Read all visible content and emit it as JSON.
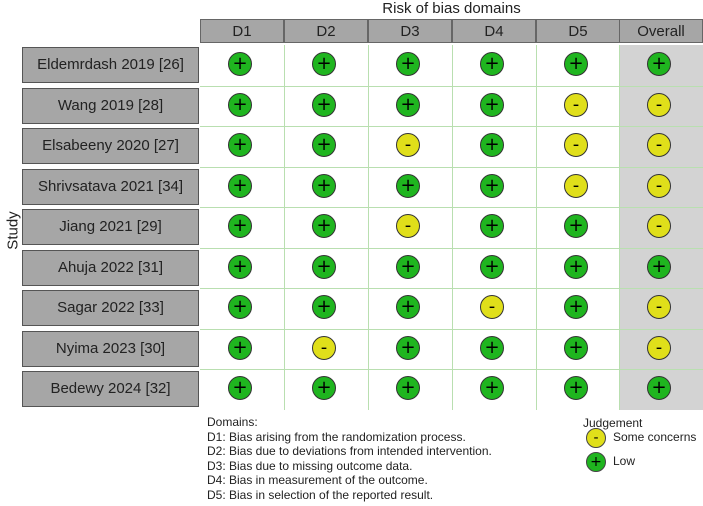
{
  "title": "Risk of bias domains",
  "y_axis_label": "Study",
  "columns": [
    "D1",
    "D2",
    "D3",
    "D4",
    "D5",
    "Overall"
  ],
  "studies": [
    {
      "name": "Eldemrdash 2019 [26]",
      "judgements": [
        "low",
        "low",
        "low",
        "low",
        "low",
        "low"
      ]
    },
    {
      "name": "Wang 2019 [28]",
      "judgements": [
        "low",
        "low",
        "low",
        "low",
        "some",
        "some"
      ]
    },
    {
      "name": "Elsabeeny 2020 [27]",
      "judgements": [
        "low",
        "low",
        "some",
        "low",
        "some",
        "some"
      ]
    },
    {
      "name": "Shrivsatava 2021 [34]",
      "judgements": [
        "low",
        "low",
        "low",
        "low",
        "some",
        "some"
      ]
    },
    {
      "name": "Jiang 2021 [29]",
      "judgements": [
        "low",
        "low",
        "some",
        "low",
        "low",
        "some"
      ]
    },
    {
      "name": "Ahuja 2022 [31]",
      "judgements": [
        "low",
        "low",
        "low",
        "low",
        "low",
        "low"
      ]
    },
    {
      "name": "Sagar 2022 [33]",
      "judgements": [
        "low",
        "low",
        "low",
        "some",
        "low",
        "some"
      ]
    },
    {
      "name": "Nyima 2023 [30]",
      "judgements": [
        "low",
        "some",
        "low",
        "low",
        "low",
        "some"
      ]
    },
    {
      "name": "Bedewy 2024 [32]",
      "judgements": [
        "low",
        "low",
        "low",
        "low",
        "low",
        "low"
      ]
    }
  ],
  "symbols": {
    "low": "+",
    "some": "-"
  },
  "colors": {
    "low": "#1fb51f",
    "some": "#e0df1a",
    "header_bg": "#a6a6a6",
    "overall_bg": "#d3d3d3"
  },
  "domains_legend": {
    "title": "Domains:",
    "items": [
      "D1: Bias arising from the randomization process.",
      "D2: Bias due to deviations from intended intervention.",
      "D3: Bias due to missing outcome data.",
      "D4: Bias in measurement of the outcome.",
      "D5: Bias in selection of the reported result."
    ]
  },
  "judgement_legend": {
    "title": "Judgement",
    "items": [
      {
        "key": "some",
        "label": "Some concerns"
      },
      {
        "key": "low",
        "label": "Low"
      }
    ]
  }
}
